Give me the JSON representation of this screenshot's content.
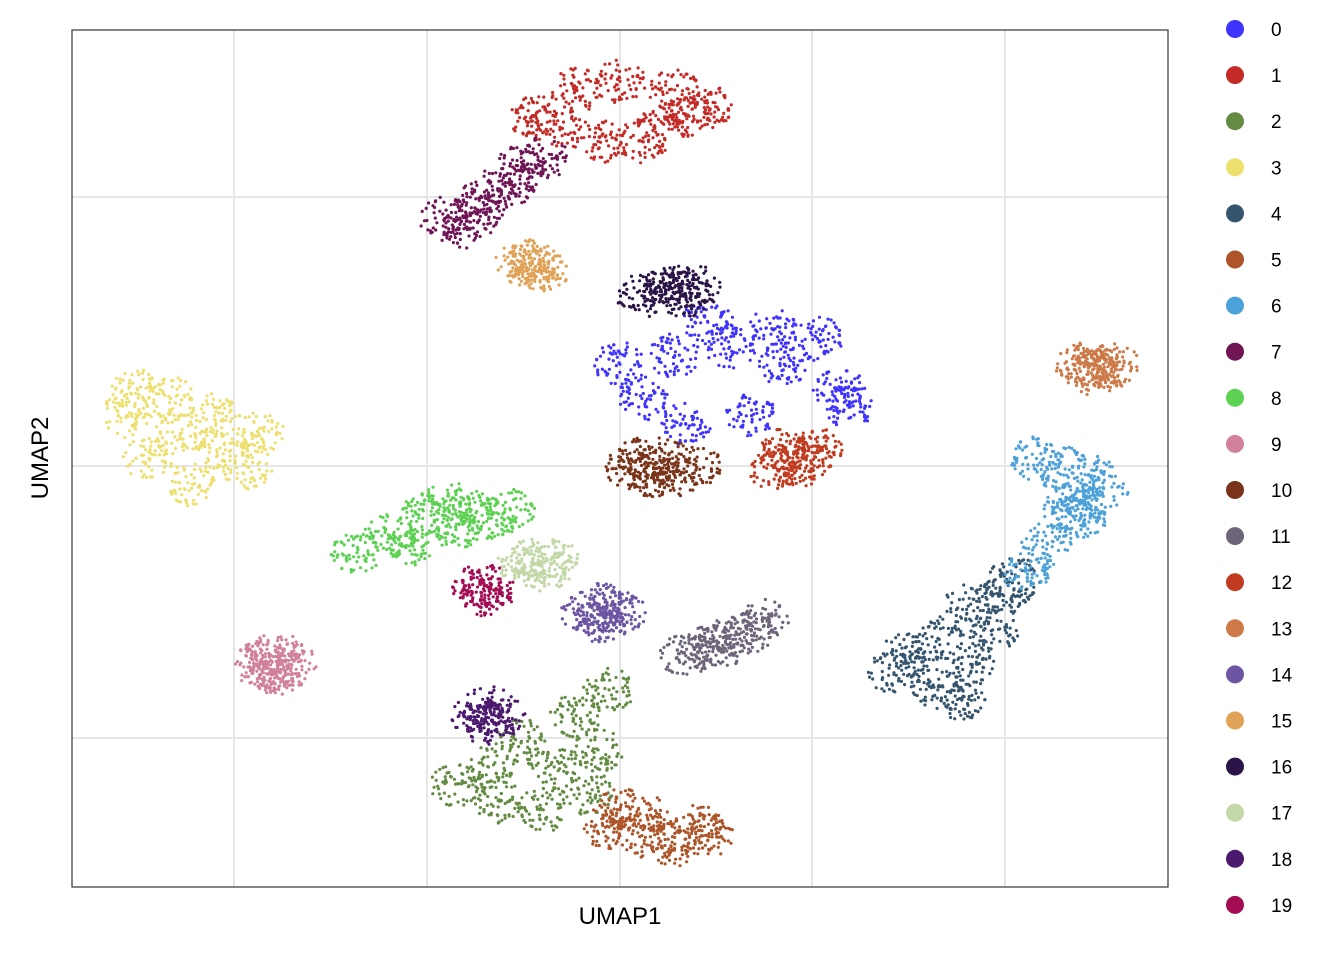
{
  "chart_data": {
    "type": "scatter",
    "title": "",
    "xlabel": "UMAP1",
    "ylabel": "UMAP2",
    "grid": true,
    "legend_position": "right",
    "x_tick_labels": false,
    "y_tick_labels": false,
    "xlim": [
      0,
      1
    ],
    "ylim": [
      0,
      1
    ],
    "clusters": [
      {
        "label": "0",
        "color": "#3F33FF",
        "points": [
          [
            0.5,
            0.61
          ],
          [
            0.55,
            0.62
          ],
          [
            0.6,
            0.63
          ],
          [
            0.65,
            0.61
          ],
          [
            0.7,
            0.58
          ],
          [
            0.62,
            0.55
          ],
          [
            0.56,
            0.54
          ],
          [
            0.52,
            0.57
          ],
          [
            0.58,
            0.66
          ],
          [
            0.64,
            0.65
          ],
          [
            0.68,
            0.64
          ],
          [
            0.71,
            0.56
          ]
        ]
      },
      {
        "label": "1",
        "color": "#C42B26",
        "points": [
          [
            0.42,
            0.9
          ],
          [
            0.46,
            0.93
          ],
          [
            0.5,
            0.94
          ],
          [
            0.55,
            0.93
          ],
          [
            0.58,
            0.91
          ],
          [
            0.52,
            0.87
          ],
          [
            0.48,
            0.87
          ],
          [
            0.44,
            0.89
          ],
          [
            0.54,
            0.89
          ],
          [
            0.56,
            0.9
          ]
        ]
      },
      {
        "label": "2",
        "color": "#638B42",
        "points": [
          [
            0.35,
            0.12
          ],
          [
            0.39,
            0.1
          ],
          [
            0.43,
            0.09
          ],
          [
            0.47,
            0.11
          ],
          [
            0.48,
            0.16
          ],
          [
            0.46,
            0.2
          ],
          [
            0.41,
            0.17
          ],
          [
            0.44,
            0.14
          ],
          [
            0.49,
            0.23
          ],
          [
            0.38,
            0.14
          ]
        ]
      },
      {
        "label": "3",
        "color": "#EDE06E",
        "points": [
          [
            0.05,
            0.55
          ],
          [
            0.09,
            0.57
          ],
          [
            0.13,
            0.55
          ],
          [
            0.17,
            0.53
          ],
          [
            0.16,
            0.49
          ],
          [
            0.11,
            0.47
          ],
          [
            0.07,
            0.5
          ],
          [
            0.1,
            0.53
          ],
          [
            0.14,
            0.51
          ],
          [
            0.06,
            0.58
          ]
        ]
      },
      {
        "label": "4",
        "color": "#35556F",
        "points": [
          [
            0.75,
            0.25
          ],
          [
            0.79,
            0.23
          ],
          [
            0.82,
            0.26
          ],
          [
            0.84,
            0.3
          ],
          [
            0.85,
            0.34
          ],
          [
            0.82,
            0.33
          ],
          [
            0.79,
            0.29
          ],
          [
            0.76,
            0.27
          ],
          [
            0.81,
            0.22
          ],
          [
            0.86,
            0.36
          ]
        ]
      },
      {
        "label": "5",
        "color": "#AD5528",
        "points": [
          [
            0.49,
            0.07
          ],
          [
            0.52,
            0.06
          ],
          [
            0.55,
            0.05
          ],
          [
            0.58,
            0.06
          ],
          [
            0.53,
            0.08
          ],
          [
            0.5,
            0.09
          ],
          [
            0.57,
            0.07
          ]
        ]
      },
      {
        "label": "6",
        "color": "#4DA1D9",
        "points": [
          [
            0.92,
            0.45
          ],
          [
            0.93,
            0.48
          ],
          [
            0.94,
            0.46
          ],
          [
            0.92,
            0.43
          ],
          [
            0.9,
            0.49
          ],
          [
            0.89,
            0.4
          ],
          [
            0.87,
            0.37
          ],
          [
            0.88,
            0.5
          ],
          [
            0.91,
            0.44
          ]
        ]
      },
      {
        "label": "7",
        "color": "#6F1555",
        "points": [
          [
            0.34,
            0.78
          ],
          [
            0.37,
            0.79
          ],
          [
            0.4,
            0.82
          ],
          [
            0.43,
            0.85
          ],
          [
            0.36,
            0.77
          ],
          [
            0.38,
            0.81
          ],
          [
            0.41,
            0.84
          ]
        ]
      },
      {
        "label": "8",
        "color": "#5CD152",
        "points": [
          [
            0.26,
            0.39
          ],
          [
            0.29,
            0.41
          ],
          [
            0.32,
            0.43
          ],
          [
            0.34,
            0.45
          ],
          [
            0.36,
            0.44
          ],
          [
            0.38,
            0.43
          ],
          [
            0.4,
            0.44
          ],
          [
            0.35,
            0.42
          ],
          [
            0.31,
            0.4
          ]
        ]
      },
      {
        "label": "9",
        "color": "#D1819C",
        "points": [
          [
            0.17,
            0.26
          ],
          [
            0.18,
            0.27
          ],
          [
            0.19,
            0.27
          ],
          [
            0.2,
            0.26
          ],
          [
            0.18,
            0.25
          ],
          [
            0.19,
            0.25
          ]
        ]
      },
      {
        "label": "10",
        "color": "#7A3419",
        "points": [
          [
            0.51,
            0.49
          ],
          [
            0.53,
            0.48
          ],
          [
            0.55,
            0.48
          ],
          [
            0.57,
            0.49
          ],
          [
            0.54,
            0.5
          ],
          [
            0.52,
            0.5
          ]
        ]
      },
      {
        "label": "11",
        "color": "#6E6479",
        "points": [
          [
            0.56,
            0.27
          ],
          [
            0.58,
            0.28
          ],
          [
            0.6,
            0.29
          ],
          [
            0.62,
            0.3
          ],
          [
            0.63,
            0.31
          ],
          [
            0.59,
            0.28
          ]
        ]
      },
      {
        "label": "12",
        "color": "#C03B1F",
        "points": [
          [
            0.64,
            0.49
          ],
          [
            0.66,
            0.49
          ],
          [
            0.67,
            0.5
          ],
          [
            0.68,
            0.51
          ],
          [
            0.65,
            0.51
          ]
        ]
      },
      {
        "label": "13",
        "color": "#CD7A48",
        "points": [
          [
            0.92,
            0.61
          ],
          [
            0.93,
            0.61
          ],
          [
            0.94,
            0.6
          ],
          [
            0.95,
            0.61
          ],
          [
            0.93,
            0.6
          ]
        ]
      },
      {
        "label": "14",
        "color": "#6C55A3",
        "points": [
          [
            0.47,
            0.32
          ],
          [
            0.48,
            0.31
          ],
          [
            0.49,
            0.32
          ],
          [
            0.5,
            0.32
          ],
          [
            0.48,
            0.33
          ]
        ]
      },
      {
        "label": "15",
        "color": "#E0A256",
        "points": [
          [
            0.41,
            0.73
          ],
          [
            0.42,
            0.72
          ],
          [
            0.43,
            0.72
          ],
          [
            0.42,
            0.73
          ]
        ]
      },
      {
        "label": "16",
        "color": "#2B1447",
        "points": [
          [
            0.52,
            0.69
          ],
          [
            0.54,
            0.7
          ],
          [
            0.56,
            0.69
          ],
          [
            0.57,
            0.7
          ],
          [
            0.55,
            0.7
          ]
        ]
      },
      {
        "label": "17",
        "color": "#C2D8A7",
        "points": [
          [
            0.41,
            0.38
          ],
          [
            0.42,
            0.38
          ],
          [
            0.43,
            0.37
          ],
          [
            0.44,
            0.38
          ]
        ]
      },
      {
        "label": "18",
        "color": "#4B1A6F",
        "points": [
          [
            0.37,
            0.2
          ],
          [
            0.38,
            0.19
          ],
          [
            0.39,
            0.2
          ],
          [
            0.38,
            0.21
          ]
        ]
      },
      {
        "label": "19",
        "color": "#A30D54",
        "points": [
          [
            0.37,
            0.35
          ],
          [
            0.38,
            0.34
          ],
          [
            0.38,
            0.35
          ]
        ]
      }
    ]
  }
}
